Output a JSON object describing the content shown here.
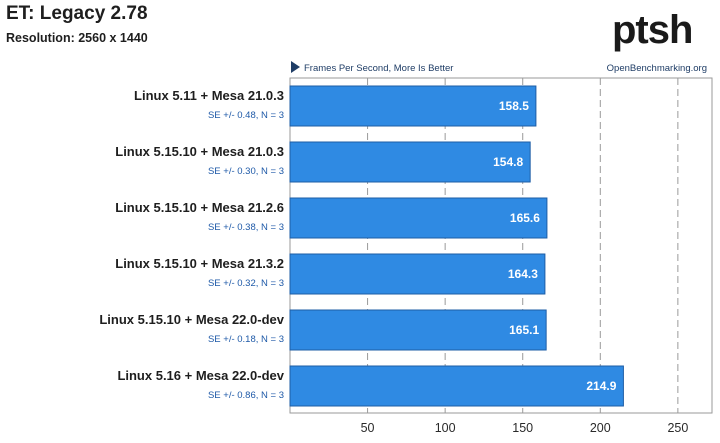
{
  "chart_data": {
    "type": "bar",
    "orientation": "horizontal",
    "title": "ET: Legacy 2.78",
    "subtitle": "Resolution: 2560 x 1440",
    "ylabel": "Frames Per Second, More Is Better",
    "source": "OpenBenchmarking.org",
    "logo": "ptsh",
    "categories": [
      "Linux 5.11 + Mesa 21.0.3",
      "Linux 5.15.10 + Mesa 21.0.3",
      "Linux 5.15.10 + Mesa 21.2.6",
      "Linux 5.15.10 + Mesa 21.3.2",
      "Linux 5.15.10 + Mesa 22.0-dev",
      "Linux 5.16 + Mesa 22.0-dev"
    ],
    "errors": [
      "SE +/- 0.48, N = 3",
      "SE +/- 0.30, N = 3",
      "SE +/- 0.38, N = 3",
      "SE +/- 0.32, N = 3",
      "SE +/- 0.18, N = 3",
      "SE +/- 0.86, N = 3"
    ],
    "values": [
      158.5,
      154.8,
      165.6,
      164.3,
      165.1,
      214.9
    ],
    "value_labels": [
      "158.5",
      "154.8",
      "165.6",
      "164.3",
      "165.1",
      "214.9"
    ],
    "xticks": [
      50,
      100,
      150,
      200,
      250
    ],
    "tick_labels": [
      "50",
      "100",
      "150",
      "200",
      "250"
    ],
    "xlim": [
      0,
      272
    ],
    "grid": "vertical dashed",
    "bar_color": "#2f8ae3"
  }
}
